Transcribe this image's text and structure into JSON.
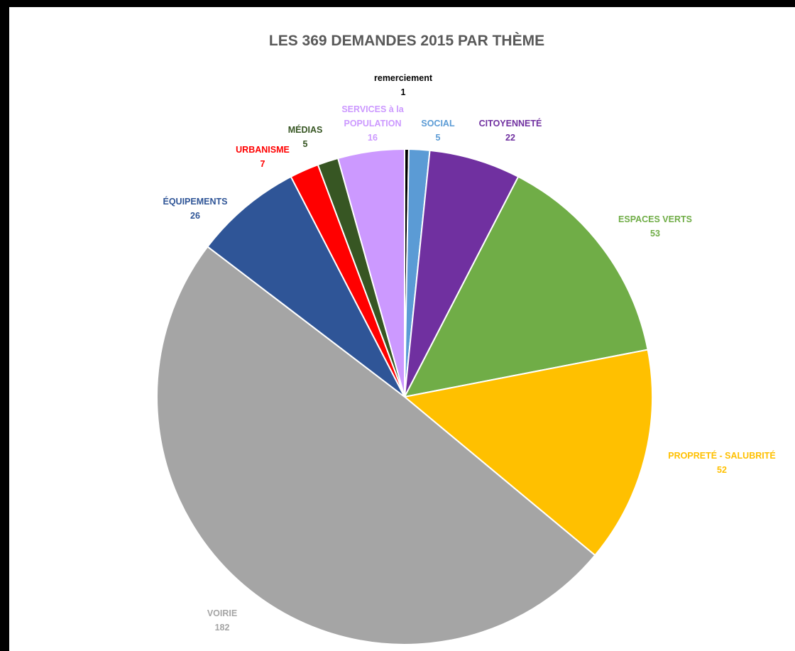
{
  "chart_data": {
    "type": "pie",
    "title": "LES 369 DEMANDES 2015 PAR THÈME",
    "slices": [
      {
        "label": "remerciement",
        "value": 1,
        "color": "#000000",
        "label_color": "#000000"
      },
      {
        "label": "SOCIAL",
        "value": 5,
        "color": "#5B9BD5",
        "label_color": "#5B9BD5"
      },
      {
        "label": "CITOYENNETÉ",
        "value": 22,
        "color": "#7030A0",
        "label_color": "#7030A0"
      },
      {
        "label": "ESPACES VERTS",
        "value": 53,
        "color": "#70AD47",
        "label_color": "#70AD47"
      },
      {
        "label": "PROPRETÉ - SALUBRITÉ",
        "value": 52,
        "color": "#FFC000",
        "label_color": "#FFC000"
      },
      {
        "label": "VOIRIE",
        "value": 182,
        "color": "#A5A5A5",
        "label_color": "#A5A5A5"
      },
      {
        "label": "ÉQUIPEMENTS",
        "value": 26,
        "color": "#2F5597",
        "label_color": "#2F5597"
      },
      {
        "label": "URBANISME",
        "value": 7,
        "color": "#FF0000",
        "label_color": "#FF0000"
      },
      {
        "label": "MÉDIAS",
        "value": 5,
        "color": "#375623",
        "label_color": "#375623"
      },
      {
        "label": "SERVICES à la POPULATION",
        "value": 16,
        "color": "#CC99FF",
        "label_color": "#CC99FF"
      }
    ],
    "legend": "none"
  }
}
